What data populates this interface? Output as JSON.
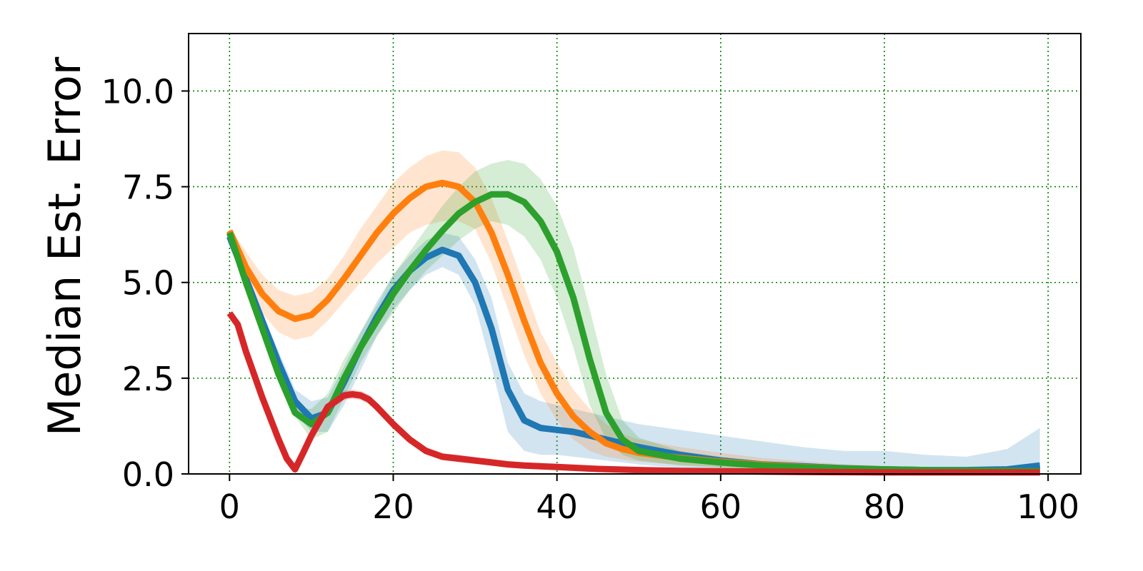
{
  "chart_data": {
    "type": "line",
    "title": "",
    "xlabel": "",
    "ylabel": "Median Est. Error",
    "xlim": [
      -5,
      104
    ],
    "ylim": [
      0,
      11.5
    ],
    "xticks": [
      0,
      20,
      40,
      60,
      80,
      100
    ],
    "yticks": [
      0.0,
      2.5,
      5.0,
      7.5,
      10.0
    ],
    "xtick_labels": [
      "0",
      "20",
      "40",
      "60",
      "80",
      "100"
    ],
    "ytick_labels": [
      "0.0",
      "2.5",
      "5.0",
      "7.5",
      "10.0"
    ],
    "grid": true,
    "grid_style": "dotted",
    "grid_color": "#008000",
    "legend": "none",
    "series": [
      {
        "color": "#1f77b4",
        "x": [
          0,
          2,
          4,
          6,
          8,
          10,
          12,
          14,
          16,
          18,
          20,
          22,
          24,
          26,
          28,
          30,
          32,
          34,
          36,
          38,
          40,
          42,
          44,
          46,
          48,
          50,
          55,
          60,
          65,
          70,
          75,
          80,
          85,
          90,
          95,
          99
        ],
        "y": [
          6.2,
          5.1,
          4.0,
          2.9,
          1.9,
          1.45,
          1.6,
          2.4,
          3.3,
          4.1,
          4.8,
          5.3,
          5.65,
          5.85,
          5.7,
          5.0,
          3.8,
          2.2,
          1.4,
          1.2,
          1.15,
          1.1,
          1.0,
          0.9,
          0.8,
          0.7,
          0.5,
          0.35,
          0.25,
          0.2,
          0.15,
          0.12,
          0.1,
          0.1,
          0.12,
          0.22
        ],
        "lower": [
          6.1,
          5.0,
          3.8,
          2.6,
          1.6,
          1.1,
          1.1,
          1.8,
          2.7,
          3.6,
          4.3,
          4.8,
          5.2,
          5.4,
          5.2,
          4.4,
          2.8,
          1.1,
          0.6,
          0.5,
          0.5,
          0.45,
          0.4,
          0.35,
          0.3,
          0.25,
          0.15,
          0.1,
          0.06,
          0.04,
          0.03,
          0.02,
          0.02,
          0.02,
          0.03,
          0.05
        ],
        "upper": [
          6.3,
          5.3,
          4.2,
          3.2,
          2.2,
          1.9,
          2.0,
          2.8,
          3.7,
          4.5,
          5.2,
          5.7,
          6.1,
          6.3,
          6.2,
          5.6,
          4.6,
          2.9,
          2.1,
          1.9,
          1.8,
          1.7,
          1.6,
          1.5,
          1.4,
          1.3,
          1.15,
          1.0,
          0.85,
          0.7,
          0.6,
          0.6,
          0.5,
          0.45,
          0.65,
          1.2
        ]
      },
      {
        "color": "#ff7f0e",
        "x": [
          0,
          2,
          4,
          6,
          8,
          10,
          12,
          14,
          16,
          18,
          20,
          22,
          24,
          26,
          28,
          30,
          32,
          34,
          36,
          38,
          40,
          42,
          44,
          46,
          48,
          50,
          55,
          60,
          65,
          70,
          75,
          80,
          85,
          90,
          95,
          99
        ],
        "y": [
          6.35,
          5.4,
          4.7,
          4.25,
          4.05,
          4.15,
          4.55,
          5.1,
          5.7,
          6.3,
          6.8,
          7.2,
          7.5,
          7.6,
          7.5,
          7.1,
          6.3,
          5.2,
          4.0,
          2.9,
          2.1,
          1.5,
          1.1,
          0.8,
          0.65,
          0.55,
          0.42,
          0.32,
          0.24,
          0.18,
          0.14,
          0.11,
          0.09,
          0.08,
          0.07,
          0.06
        ],
        "lower": [
          6.25,
          5.0,
          4.2,
          3.7,
          3.5,
          3.6,
          4.0,
          4.5,
          5.0,
          5.5,
          5.9,
          6.3,
          6.5,
          6.6,
          6.6,
          6.4,
          5.5,
          4.3,
          3.1,
          2.1,
          1.4,
          0.9,
          0.6,
          0.45,
          0.38,
          0.32,
          0.24,
          0.18,
          0.13,
          0.1,
          0.08,
          0.06,
          0.05,
          0.04,
          0.04,
          0.03
        ],
        "upper": [
          6.45,
          5.8,
          5.2,
          4.8,
          4.65,
          4.75,
          5.1,
          5.7,
          6.4,
          7.0,
          7.6,
          8.0,
          8.3,
          8.45,
          8.4,
          8.0,
          7.2,
          6.1,
          4.9,
          3.7,
          2.9,
          2.2,
          1.7,
          1.3,
          1.05,
          0.9,
          0.7,
          0.55,
          0.42,
          0.33,
          0.26,
          0.21,
          0.17,
          0.15,
          0.13,
          0.12
        ]
      },
      {
        "color": "#2ca02c",
        "x": [
          0,
          2,
          4,
          6,
          8,
          10,
          12,
          14,
          16,
          18,
          20,
          22,
          24,
          26,
          28,
          30,
          32,
          34,
          36,
          38,
          40,
          42,
          44,
          46,
          48,
          50,
          55,
          60,
          65,
          70,
          75,
          80,
          85,
          90,
          95,
          99
        ],
        "y": [
          6.3,
          5.0,
          3.8,
          2.6,
          1.6,
          1.3,
          1.6,
          2.5,
          3.3,
          4.0,
          4.7,
          5.3,
          5.85,
          6.35,
          6.8,
          7.1,
          7.3,
          7.3,
          7.1,
          6.6,
          5.8,
          4.6,
          3.0,
          1.6,
          0.9,
          0.6,
          0.4,
          0.3,
          0.22,
          0.17,
          0.14,
          0.12,
          0.1,
          0.09,
          0.08,
          0.07
        ],
        "lower": [
          6.25,
          4.9,
          3.7,
          2.5,
          1.5,
          0.9,
          1.1,
          2.0,
          2.9,
          3.6,
          4.2,
          4.8,
          5.3,
          5.7,
          6.1,
          6.4,
          6.6,
          6.5,
          6.2,
          5.6,
          4.6,
          3.3,
          1.8,
          0.9,
          0.5,
          0.35,
          0.22,
          0.16,
          0.12,
          0.09,
          0.07,
          0.06,
          0.05,
          0.04,
          0.04,
          0.03
        ],
        "upper": [
          6.35,
          5.1,
          3.9,
          2.7,
          1.7,
          1.7,
          2.1,
          3.0,
          3.7,
          4.4,
          5.2,
          5.8,
          6.4,
          7.0,
          7.5,
          7.9,
          8.1,
          8.2,
          8.1,
          7.7,
          7.0,
          5.9,
          4.3,
          2.6,
          1.4,
          0.95,
          0.6,
          0.45,
          0.33,
          0.26,
          0.21,
          0.18,
          0.15,
          0.14,
          0.12,
          0.11
        ]
      },
      {
        "color": "#d62728",
        "x": [
          0,
          1,
          2,
          4,
          6,
          7,
          8,
          9,
          10,
          12,
          14,
          15,
          16,
          17,
          18,
          20,
          22,
          24,
          26,
          28,
          30,
          32,
          34,
          36,
          38,
          40,
          45,
          50,
          55,
          60,
          70,
          80,
          90,
          99
        ],
        "y": [
          4.2,
          3.9,
          3.2,
          2.0,
          0.9,
          0.4,
          0.12,
          0.55,
          1.0,
          1.75,
          2.05,
          2.08,
          2.05,
          1.95,
          1.75,
          1.3,
          0.9,
          0.6,
          0.45,
          0.4,
          0.35,
          0.3,
          0.25,
          0.22,
          0.2,
          0.18,
          0.13,
          0.1,
          0.08,
          0.07,
          0.05,
          0.04,
          0.04,
          0.04
        ],
        "lower": [
          4.15,
          3.85,
          3.15,
          1.95,
          0.85,
          0.35,
          0.08,
          0.5,
          0.95,
          1.65,
          1.93,
          1.96,
          1.93,
          1.83,
          1.63,
          1.18,
          0.8,
          0.5,
          0.36,
          0.3,
          0.26,
          0.22,
          0.18,
          0.16,
          0.14,
          0.13,
          0.09,
          0.07,
          0.05,
          0.05,
          0.03,
          0.03,
          0.03,
          0.03
        ],
        "upper": [
          4.25,
          3.95,
          3.25,
          2.05,
          0.95,
          0.45,
          0.16,
          0.6,
          1.05,
          1.85,
          2.17,
          2.2,
          2.17,
          2.07,
          1.87,
          1.42,
          1.0,
          0.7,
          0.54,
          0.5,
          0.44,
          0.38,
          0.32,
          0.28,
          0.26,
          0.23,
          0.17,
          0.13,
          0.11,
          0.09,
          0.07,
          0.05,
          0.05,
          0.05
        ]
      }
    ]
  }
}
